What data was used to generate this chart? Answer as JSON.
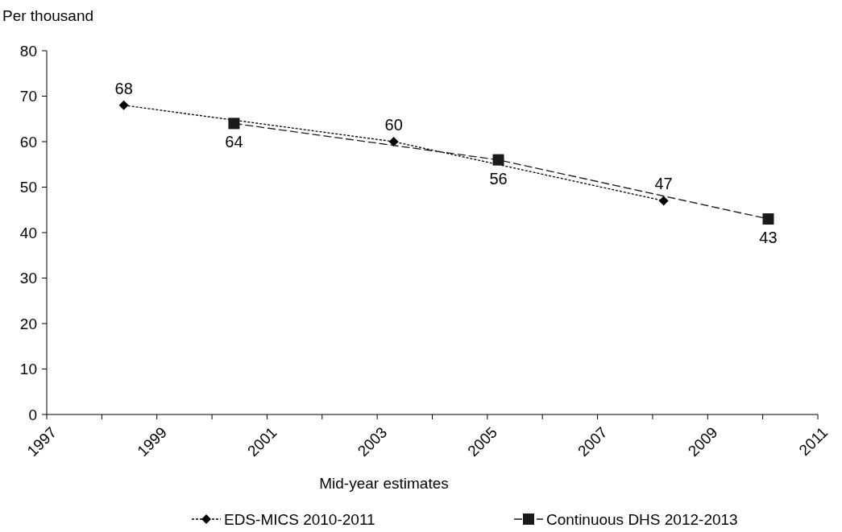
{
  "chart_data": {
    "type": "line",
    "ylabel": "Per thousand",
    "xlabel": "Mid-year estimates",
    "xlim": [
      1997,
      2011
    ],
    "ylim": [
      0,
      80
    ],
    "xticks": [
      1997,
      {
        "value": 1998,
        "label": null
      },
      1999,
      {
        "value": 2000,
        "label": null
      },
      2001,
      {
        "value": 2002,
        "label": null
      },
      2003,
      {
        "value": 2004,
        "label": null
      },
      2005,
      {
        "value": 2006,
        "label": null
      },
      2007,
      {
        "value": 2008,
        "label": null
      },
      2009,
      {
        "value": 2010,
        "label": null
      },
      2011
    ],
    "yticks": [
      0,
      10,
      20,
      30,
      40,
      50,
      60,
      70,
      80
    ],
    "grid": false,
    "legend": "bottom",
    "data_labels": true,
    "series": [
      {
        "name": "EDS-MICS 2010-2011",
        "color": "#000000",
        "x": [
          1998.4,
          2003.3,
          2008.2
        ],
        "values": [
          68,
          60,
          47
        ],
        "marker": "diamond",
        "line_style": "dotted"
      },
      {
        "name": "Continuous DHS 2012-2013",
        "color": "#1a1a1a",
        "x": [
          2000.4,
          2005.2,
          2010.1
        ],
        "values": [
          64,
          56,
          43
        ],
        "marker": "square",
        "line_style": "dashed"
      }
    ]
  }
}
